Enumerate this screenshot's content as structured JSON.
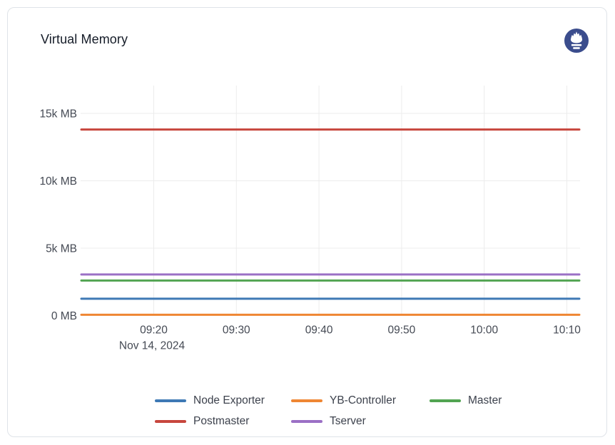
{
  "panel": {
    "title": "Virtual Memory"
  },
  "colors": {
    "card_border": "#dfe3e8",
    "title_text": "#151c28",
    "grid": "#ececec",
    "axis_text": "#454a54",
    "legend_text": "#3d424d",
    "logo_bg": "#3b4d8d",
    "logo_flame": "#ffffff"
  },
  "icons": {
    "logo": "prometheus-icon"
  },
  "chart_data": {
    "type": "line",
    "title": "Virtual Memory",
    "xlabel": "",
    "ylabel": "",
    "unit": "MB",
    "ylim": [
      0,
      16500
    ],
    "grid": true,
    "legend_position": "bottom",
    "x_range_time": [
      "09:11",
      "10:12"
    ],
    "x_ticks": [
      "09:20",
      "09:30",
      "09:40",
      "09:50",
      "10:00",
      "10:10"
    ],
    "x_date_label": "Nov 14, 2024",
    "y_ticks": [
      {
        "value": 0,
        "label": "0 MB"
      },
      {
        "value": 5000,
        "label": "5k MB"
      },
      {
        "value": 10000,
        "label": "10k MB"
      },
      {
        "value": 15000,
        "label": "15k MB"
      }
    ],
    "note": "All series are flat (constant) horizontal lines across the full time range",
    "series": [
      {
        "name": "Node Exporter",
        "color": "#3e79b5",
        "value_mb": 1250
      },
      {
        "name": "YB-Controller",
        "color": "#ef8633",
        "value_mb": 60
      },
      {
        "name": "Master",
        "color": "#52a452",
        "value_mb": 2600
      },
      {
        "name": "Postmaster",
        "color": "#c7463d",
        "value_mb": 13800
      },
      {
        "name": "Tserver",
        "color": "#9b70c5",
        "value_mb": 3050
      }
    ]
  }
}
